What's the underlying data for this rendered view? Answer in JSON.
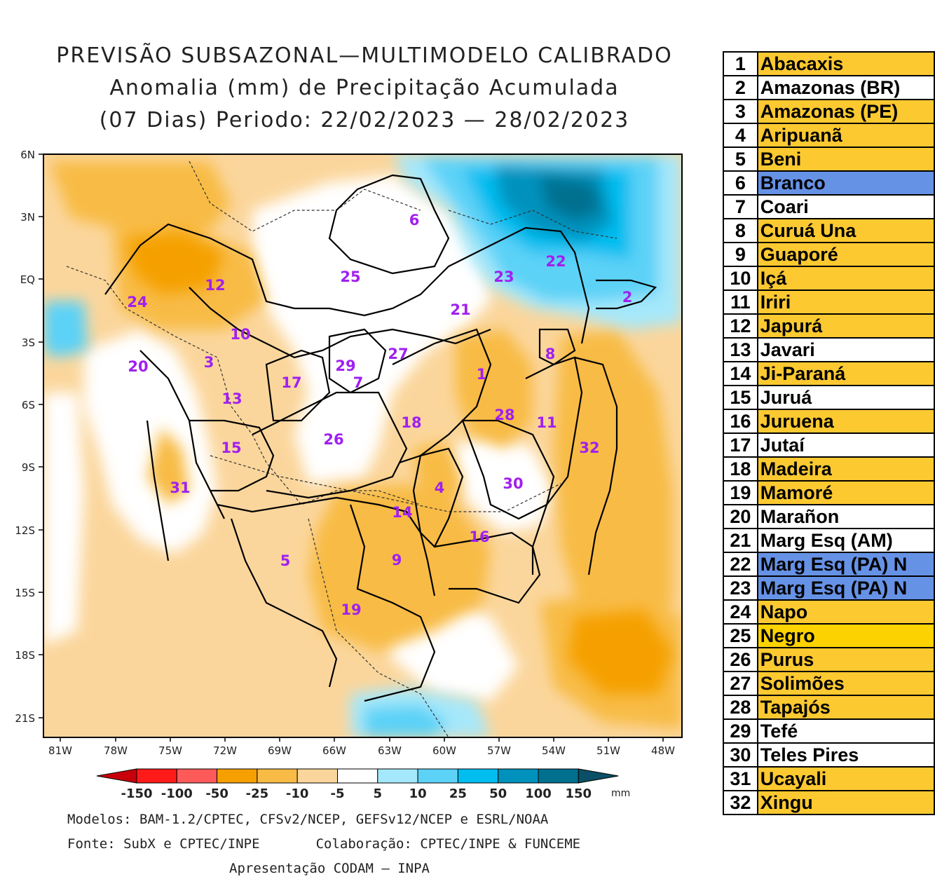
{
  "title": {
    "line1": "PREVISÃO SUBSAZONAL—MULTIMODELO CALIBRADO",
    "line2": "Anomalia (mm) de Precipitação Acumulada",
    "line3": "(07 Dias) Periodo: 22/02/2023 — 28/02/2023"
  },
  "map": {
    "lat_labels": [
      "6N",
      "3N",
      "EQ",
      "3S",
      "6S",
      "9S",
      "12S",
      "15S",
      "18S",
      "21S"
    ],
    "lon_labels": [
      "81W",
      "78W",
      "75W",
      "72W",
      "69W",
      "66W",
      "63W",
      "60W",
      "57W",
      "54W",
      "51W",
      "48W"
    ],
    "basin_markers": [
      {
        "label": "1"
      },
      {
        "label": "2"
      },
      {
        "label": "3"
      },
      {
        "label": "4"
      },
      {
        "label": "5"
      },
      {
        "label": "6"
      },
      {
        "label": "7"
      },
      {
        "label": "8"
      },
      {
        "label": "9"
      },
      {
        "label": "10"
      },
      {
        "label": "11"
      },
      {
        "label": "12"
      },
      {
        "label": "13"
      },
      {
        "label": "14"
      },
      {
        "label": "15"
      },
      {
        "label": "16"
      },
      {
        "label": "17"
      },
      {
        "label": "18"
      },
      {
        "label": "19"
      },
      {
        "label": "20"
      },
      {
        "label": "21"
      },
      {
        "label": "22"
      },
      {
        "label": "23"
      },
      {
        "label": "24"
      },
      {
        "label": "25"
      },
      {
        "label": "26"
      },
      {
        "label": "27"
      },
      {
        "label": "28"
      },
      {
        "label": "29"
      },
      {
        "label": "30"
      },
      {
        "label": "31"
      },
      {
        "label": "32"
      }
    ]
  },
  "colorbar": {
    "unit": "mm",
    "tick_labels": [
      "-150",
      "-100",
      "-50",
      "-25",
      "-10",
      "-5",
      "5",
      "10",
      "25",
      "50",
      "100",
      "150"
    ],
    "colors": [
      "#c8000a",
      "#ff1a1a",
      "#ff5a5a",
      "#f5a000",
      "#f8bb45",
      "#fbd69c",
      "#ffffff",
      "#a6e8fb",
      "#5cd2f7",
      "#00bdf0",
      "#0092bd",
      "#00708f",
      "#0a4f66"
    ]
  },
  "credits": {
    "line1": "Modelos: BAM-1.2/CPTEC, CFSv2/NCEP, GEFSv12/NCEP e ESRL/NOAA",
    "line2": "Fonte: SubX e CPTEC/INPE       Colaboração: CPTEC/INPE & FUNCEME",
    "line3": "Apresentação CODAM — INPA"
  },
  "basins": [
    {
      "num": "1",
      "name": "Abacaxis",
      "color": "#fcc931"
    },
    {
      "num": "2",
      "name": "Amazonas (BR)",
      "color": "#ffffff"
    },
    {
      "num": "3",
      "name": "Amazonas (PE)",
      "color": "#fcc931"
    },
    {
      "num": "4",
      "name": "Aripuanã",
      "color": "#fcc931"
    },
    {
      "num": "5",
      "name": "Beni",
      "color": "#fcc931"
    },
    {
      "num": "6",
      "name": "Branco",
      "color": "#6692e6"
    },
    {
      "num": "7",
      "name": "Coari",
      "color": "#ffffff"
    },
    {
      "num": "8",
      "name": "Curuá Una",
      "color": "#fcc931"
    },
    {
      "num": "9",
      "name": "Guaporé",
      "color": "#fcc931"
    },
    {
      "num": "10",
      "name": "Içá",
      "color": "#fcc931"
    },
    {
      "num": "11",
      "name": "Iriri",
      "color": "#fcc931"
    },
    {
      "num": "12",
      "name": "Japurá",
      "color": "#fcc931"
    },
    {
      "num": "13",
      "name": "Javari",
      "color": "#ffffff"
    },
    {
      "num": "14",
      "name": "Ji-Paraná",
      "color": "#fcc931"
    },
    {
      "num": "15",
      "name": "Juruá",
      "color": "#ffffff"
    },
    {
      "num": "16",
      "name": "Juruena",
      "color": "#fcc931"
    },
    {
      "num": "17",
      "name": "Jutaí",
      "color": "#ffffff"
    },
    {
      "num": "18",
      "name": "Madeira",
      "color": "#fcc931"
    },
    {
      "num": "19",
      "name": "Mamoré",
      "color": "#fcc931"
    },
    {
      "num": "20",
      "name": "Marañon",
      "color": "#ffffff"
    },
    {
      "num": "21",
      "name": "Marg Esq (AM)",
      "color": "#ffffff"
    },
    {
      "num": "22",
      "name": "Marg Esq (PA) N",
      "color": "#6692e6"
    },
    {
      "num": "23",
      "name": "Marg Esq (PA) N",
      "color": "#6692e6"
    },
    {
      "num": "24",
      "name": "Napo",
      "color": "#fcc931"
    },
    {
      "num": "25",
      "name": "Negro",
      "color": "#fcd200"
    },
    {
      "num": "26",
      "name": "Purus",
      "color": "#fcc931"
    },
    {
      "num": "27",
      "name": "Solimões",
      "color": "#fcc931"
    },
    {
      "num": "28",
      "name": "Tapajós",
      "color": "#fcc931"
    },
    {
      "num": "29",
      "name": "Tefé",
      "color": "#ffffff"
    },
    {
      "num": "30",
      "name": "Teles Pires",
      "color": "#ffffff"
    },
    {
      "num": "31",
      "name": "Ucayali",
      "color": "#fcc931"
    },
    {
      "num": "32",
      "name": "Xingu",
      "color": "#fcc931"
    }
  ]
}
